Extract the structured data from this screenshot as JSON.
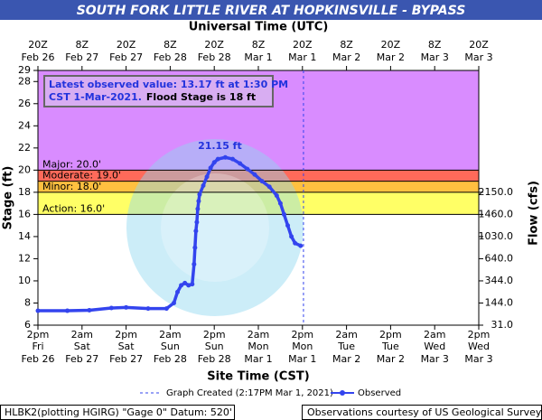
{
  "chart_data": {
    "type": "line",
    "title": "SOUTH FORK LITTLE RIVER AT HOPKINSVILLE - BYPASS",
    "x_label": "Site Time (CST)",
    "x2_label": "Universal Time (UTC)",
    "y_label": "Stage (ft)",
    "y2_label": "Flow (cfs)",
    "xlim": [
      "Feb 26 14:00",
      "Mar 3 14:00"
    ],
    "xticks": [
      {
        "value": "Feb 26 14:00",
        "label": "2pm",
        "day": "Fri",
        "date": "Feb 26"
      },
      {
        "value": "Feb 27 02:00",
        "label": "2am",
        "day": "Sat",
        "date": "Feb 27"
      },
      {
        "value": "Feb 27 14:00",
        "label": "2pm",
        "day": "Sat",
        "date": "Feb 27"
      },
      {
        "value": "Feb 28 02:00",
        "label": "2am",
        "day": "Sun",
        "date": "Feb 28"
      },
      {
        "value": "Feb 28 14:00",
        "label": "2pm",
        "day": "Sun",
        "date": "Feb 28"
      },
      {
        "value": "Mar 1 02:00",
        "label": "2am",
        "day": "Mon",
        "date": "Mar 1"
      },
      {
        "value": "Mar 1 14:00",
        "label": "2pm",
        "day": "Mon",
        "date": "Mar 1"
      },
      {
        "value": "Mar 2 02:00",
        "label": "2am",
        "day": "Tue",
        "date": "Mar 2"
      },
      {
        "value": "Mar 2 14:00",
        "label": "2pm",
        "day": "Tue",
        "date": "Mar 2"
      },
      {
        "value": "Mar 3 02:00",
        "label": "2am",
        "day": "Wed",
        "date": "Mar 3"
      },
      {
        "value": "Mar 3 14:00",
        "label": "2pm",
        "day": "Wed",
        "date": "Mar 3"
      }
    ],
    "x2ticks": [
      {
        "value": "Feb 26 14:00",
        "label": "20Z",
        "date": "Feb 26"
      },
      {
        "value": "Feb 27 02:00",
        "label": "8Z",
        "date": "Feb 27"
      },
      {
        "value": "Feb 27 14:00",
        "label": "20Z",
        "date": "Feb 27"
      },
      {
        "value": "Feb 28 02:00",
        "label": "8Z",
        "date": "Feb 28"
      },
      {
        "value": "Feb 28 14:00",
        "label": "20Z",
        "date": "Feb 28"
      },
      {
        "value": "Mar 1 02:00",
        "label": "8Z",
        "date": "Mar 1"
      },
      {
        "value": "Mar 1 14:00",
        "label": "20Z",
        "date": "Mar 1"
      },
      {
        "value": "Mar 2 02:00",
        "label": "8Z",
        "date": "Mar 2"
      },
      {
        "value": "Mar 2 14:00",
        "label": "20Z",
        "date": "Mar 2"
      },
      {
        "value": "Mar 3 02:00",
        "label": "8Z",
        "date": "Mar 3"
      },
      {
        "value": "Mar 3 14:00",
        "label": "20Z",
        "date": "Mar 3"
      }
    ],
    "ylim": [
      6,
      29
    ],
    "yticks": [
      6,
      8,
      10,
      12,
      14,
      16,
      18,
      20,
      22,
      24,
      26,
      28,
      29
    ],
    "y2ticks": [
      {
        "value": 31,
        "label": "31.0",
        "at": 6
      },
      {
        "value": 144,
        "label": "144.0",
        "at": 8
      },
      {
        "value": 344,
        "label": "344.0",
        "at": 10
      },
      {
        "value": 640,
        "label": "640.0",
        "at": 12
      },
      {
        "value": 1030,
        "label": "1030.0",
        "at": 14
      },
      {
        "value": 1460,
        "label": "1460.0",
        "at": 16
      },
      {
        "value": 2150,
        "label": "2150.0",
        "at": 18
      }
    ],
    "flood_categories": [
      {
        "label": "Action: 16.0'",
        "value": 16,
        "color": "#ffff66"
      },
      {
        "label": "Minor: 18.0'",
        "value": 18,
        "color": "#ffc040"
      },
      {
        "label": "Moderate: 19.0'",
        "value": 19,
        "color": "#ff6a5a"
      },
      {
        "label": "Major: 20.0'",
        "value": 20,
        "color": "#d98cff"
      }
    ],
    "series": [
      {
        "name": "Observed",
        "color": "#3344ee",
        "x": [
          "Feb 26 14:00",
          "Feb 26 22:00",
          "Feb 27 04:00",
          "Feb 27 10:00",
          "Feb 27 14:00",
          "Feb 27 20:00",
          "Feb 28 01:00",
          "Feb 28 03:00",
          "Feb 28 04:00",
          "Feb 28 05:00",
          "Feb 28 06:00",
          "Feb 28 07:00",
          "Feb 28 08:00",
          "Feb 28 08:30",
          "Feb 28 08:45",
          "Feb 28 09:00",
          "Feb 28 09:15",
          "Feb 28 09:30",
          "Feb 28 09:45",
          "Feb 28 10:00",
          "Feb 28 11:00",
          "Feb 28 12:00",
          "Feb 28 13:00",
          "Feb 28 14:00",
          "Feb 28 15:00",
          "Feb 28 17:00",
          "Feb 28 19:00",
          "Feb 28 21:00",
          "Feb 28 23:00",
          "Mar 1 01:00",
          "Mar 1 03:00",
          "Mar 1 05:00",
          "Mar 1 07:00",
          "Mar 1 08:00",
          "Mar 1 09:00",
          "Mar 1 10:00",
          "Mar 1 11:00",
          "Mar 1 12:00",
          "Mar 1 13:30"
        ],
        "values": [
          7.3,
          7.3,
          7.35,
          7.55,
          7.6,
          7.5,
          7.5,
          8.0,
          9.0,
          9.6,
          9.8,
          9.6,
          9.7,
          11.5,
          13.0,
          14.5,
          15.3,
          16.5,
          17.2,
          17.8,
          18.6,
          19.4,
          20.2,
          20.7,
          21.0,
          21.15,
          21.0,
          20.6,
          20.1,
          19.6,
          19.0,
          18.5,
          17.7,
          17.0,
          16.0,
          15.0,
          14.0,
          13.4,
          13.17
        ]
      }
    ],
    "peak_label": {
      "x": "Feb 28 17:00",
      "value": 21.15,
      "label": "21.15 ft"
    },
    "latest_box": {
      "line1": "Latest observed value: 13.17 ft at 1:30 PM",
      "line2": "CST 1-Mar-2021.",
      "line2b": "Flood Stage is 18 ft"
    },
    "graph_created": {
      "x": "Mar 1 14:17",
      "label": "Graph Created (2:17PM Mar 1, 2021)",
      "color": "#3344ee"
    },
    "footer_left": "HLBK2(plotting HGIRG) \"Gage 0\" Datum: 520'",
    "footer_right": "Observations courtesy of US Geological Survey"
  }
}
